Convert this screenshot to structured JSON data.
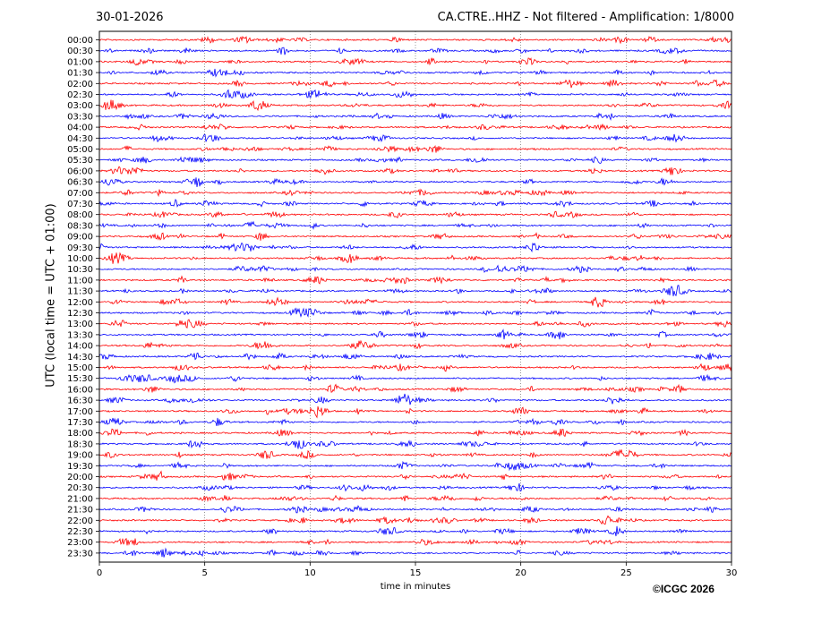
{
  "header": {
    "date": "30-01-2026",
    "station": "CA.CTRE..HHZ - Not filtered - Amplification: 1/8000"
  },
  "footer": {
    "copyright": "©ICGC 2026"
  },
  "chart_data": {
    "type": "line",
    "title": "CA.CTRE..HHZ - Not filtered - Amplification: 1/8000",
    "xlabel": "time in minutes",
    "ylabel": "UTC (local time = UTC + 01:00)",
    "xlim": [
      0,
      30
    ],
    "x_ticks": [
      "0",
      "5",
      "10",
      "15",
      "20",
      "25",
      "30"
    ],
    "grid": "vertical dotted at x-ticks",
    "row_colors": [
      "#ff0000",
      "#0000ff"
    ],
    "rows": [
      "00:00",
      "00:30",
      "01:00",
      "01:30",
      "02:00",
      "02:30",
      "03:00",
      "03:30",
      "04:00",
      "04:30",
      "05:00",
      "05:30",
      "06:00",
      "06:30",
      "07:00",
      "07:30",
      "08:00",
      "08:30",
      "09:00",
      "09:30",
      "10:00",
      "10:30",
      "11:00",
      "11:30",
      "12:00",
      "12:30",
      "13:00",
      "13:30",
      "14:00",
      "14:30",
      "15:00",
      "15:30",
      "16:00",
      "16:30",
      "17:00",
      "17:30",
      "18:00",
      "18:30",
      "19:00",
      "19:30",
      "20:00",
      "20:30",
      "21:00",
      "21:30",
      "22:00",
      "22:30",
      "23:00",
      "23:30"
    ]
  }
}
